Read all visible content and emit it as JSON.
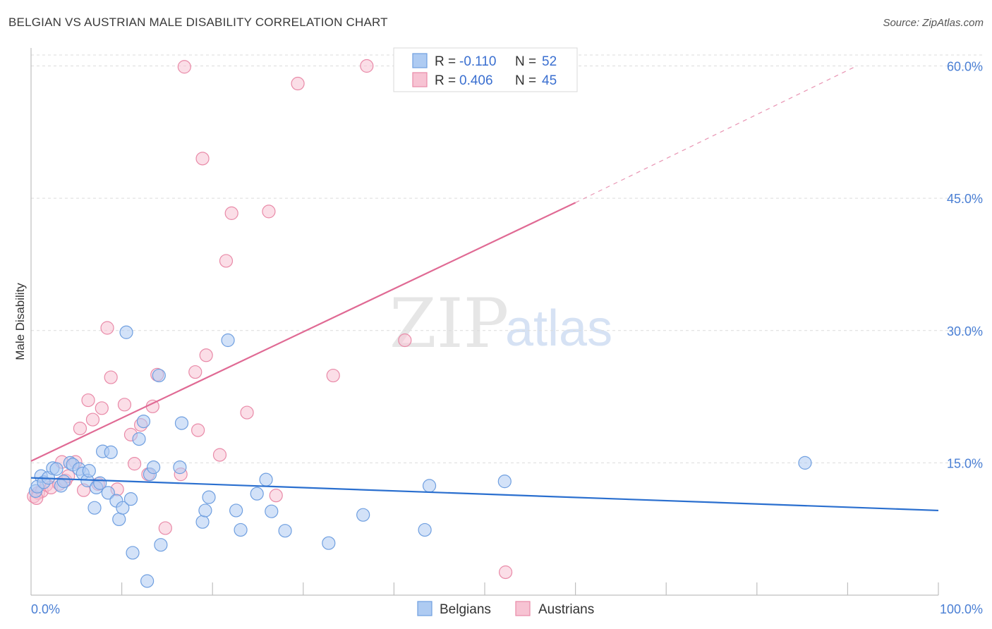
{
  "title": "BELGIAN VS AUSTRIAN MALE DISABILITY CORRELATION CHART",
  "source": "Source: ZipAtlas.com",
  "watermark": {
    "zip": "ZIP",
    "atlas": "atlas"
  },
  "colors": {
    "belgian_fill": "#aecbf2",
    "belgian_stroke": "#6f9fe0",
    "belgian_line": "#2a6fcf",
    "austrian_fill": "#f7c3d3",
    "austrian_stroke": "#e98aa8",
    "austrian_line": "#e06a94",
    "grid": "#dcdcdc",
    "tick_label": "#4a7fd4"
  },
  "legend": {
    "rows": [
      {
        "r_label": "R = ",
        "r_value": "-0.110",
        "n_label": "N = ",
        "n_value": "52"
      },
      {
        "r_label": "R = ",
        "r_value": "0.406",
        "n_label": "N = ",
        "n_value": "45"
      }
    ],
    "bottom": [
      "Belgians",
      "Austrians"
    ]
  },
  "chart_data": {
    "type": "scatter",
    "title": "BELGIAN VS AUSTRIAN MALE DISABILITY CORRELATION CHART",
    "xlabel": "",
    "ylabel": "Male Disability",
    "xlim": [
      0,
      100
    ],
    "ylim": [
      0,
      61
    ],
    "x_tick_labels": [
      "0.0%",
      "100.0%"
    ],
    "y_ticks": [
      15,
      30,
      45,
      60
    ],
    "y_tick_labels": [
      "15.0%",
      "30.0%",
      "45.0%",
      "60.0%"
    ],
    "series": [
      {
        "name": "Belgians",
        "r": -0.11,
        "n": 52,
        "trend": {
          "x": [
            0,
            100
          ],
          "y": [
            13.3,
            9.6
          ]
        },
        "points": [
          [
            0.5,
            11.8
          ],
          [
            0.7,
            12.3
          ],
          [
            1.1,
            13.5
          ],
          [
            1.4,
            12.8
          ],
          [
            1.9,
            13.3
          ],
          [
            2.4,
            14.4
          ],
          [
            2.8,
            14.3
          ],
          [
            3.3,
            12.4
          ],
          [
            3.6,
            12.9
          ],
          [
            4.3,
            15.0
          ],
          [
            4.6,
            14.8
          ],
          [
            5.3,
            14.3
          ],
          [
            5.7,
            13.8
          ],
          [
            6.2,
            13.0
          ],
          [
            6.4,
            14.1
          ],
          [
            7.0,
            9.9
          ],
          [
            7.2,
            12.2
          ],
          [
            7.6,
            12.7
          ],
          [
            7.9,
            16.3
          ],
          [
            8.5,
            11.6
          ],
          [
            8.8,
            16.2
          ],
          [
            9.4,
            10.7
          ],
          [
            9.7,
            8.6
          ],
          [
            10.1,
            9.9
          ],
          [
            10.5,
            29.8
          ],
          [
            11.0,
            10.9
          ],
          [
            11.2,
            4.8
          ],
          [
            11.9,
            17.7
          ],
          [
            12.4,
            19.7
          ],
          [
            12.8,
            1.6
          ],
          [
            13.1,
            13.7
          ],
          [
            13.5,
            14.5
          ],
          [
            14.1,
            24.9
          ],
          [
            14.3,
            5.7
          ],
          [
            16.4,
            14.5
          ],
          [
            16.6,
            19.5
          ],
          [
            18.9,
            8.3
          ],
          [
            19.2,
            9.6
          ],
          [
            19.6,
            11.1
          ],
          [
            21.7,
            28.9
          ],
          [
            22.6,
            9.6
          ],
          [
            23.1,
            7.4
          ],
          [
            24.9,
            11.5
          ],
          [
            25.9,
            13.1
          ],
          [
            26.5,
            9.5
          ],
          [
            28.0,
            7.3
          ],
          [
            32.8,
            5.9
          ],
          [
            36.6,
            9.1
          ],
          [
            43.4,
            7.4
          ],
          [
            43.9,
            12.4
          ],
          [
            52.2,
            12.9
          ],
          [
            85.3,
            15.0
          ]
        ]
      },
      {
        "name": "Austrians",
        "r": 0.406,
        "n": 45,
        "trend": {
          "x": [
            0,
            60
          ],
          "y": [
            15.2,
            44.5
          ]
        },
        "trend_dashed": {
          "x": [
            60,
            91
          ],
          "y": [
            44.5,
            60.0
          ]
        },
        "points": [
          [
            0.3,
            11.2
          ],
          [
            0.8,
            11.6
          ],
          [
            1.2,
            11.8
          ],
          [
            1.7,
            12.5
          ],
          [
            2.2,
            12.2
          ],
          [
            3.1,
            12.6
          ],
          [
            3.4,
            15.1
          ],
          [
            3.8,
            13.0
          ],
          [
            4.1,
            13.5
          ],
          [
            4.9,
            15.1
          ],
          [
            5.4,
            18.9
          ],
          [
            5.8,
            11.9
          ],
          [
            6.3,
            22.1
          ],
          [
            6.8,
            19.9
          ],
          [
            7.4,
            12.6
          ],
          [
            7.8,
            21.2
          ],
          [
            8.4,
            30.3
          ],
          [
            8.8,
            24.7
          ],
          [
            9.5,
            12.0
          ],
          [
            10.3,
            21.6
          ],
          [
            11.0,
            18.2
          ],
          [
            11.4,
            14.9
          ],
          [
            12.1,
            19.3
          ],
          [
            12.9,
            13.7
          ],
          [
            13.4,
            21.4
          ],
          [
            13.9,
            25.0
          ],
          [
            14.8,
            7.6
          ],
          [
            16.5,
            13.7
          ],
          [
            16.9,
            59.9
          ],
          [
            18.1,
            25.3
          ],
          [
            18.4,
            18.7
          ],
          [
            18.9,
            49.5
          ],
          [
            19.3,
            27.2
          ],
          [
            20.8,
            15.9
          ],
          [
            21.5,
            37.9
          ],
          [
            22.1,
            43.3
          ],
          [
            23.8,
            20.7
          ],
          [
            26.2,
            43.5
          ],
          [
            27.0,
            11.3
          ],
          [
            29.4,
            58.0
          ],
          [
            33.3,
            24.9
          ],
          [
            37.0,
            60.0
          ],
          [
            41.2,
            28.9
          ],
          [
            52.3,
            2.6
          ],
          [
            0.6,
            11.0
          ]
        ]
      }
    ]
  }
}
